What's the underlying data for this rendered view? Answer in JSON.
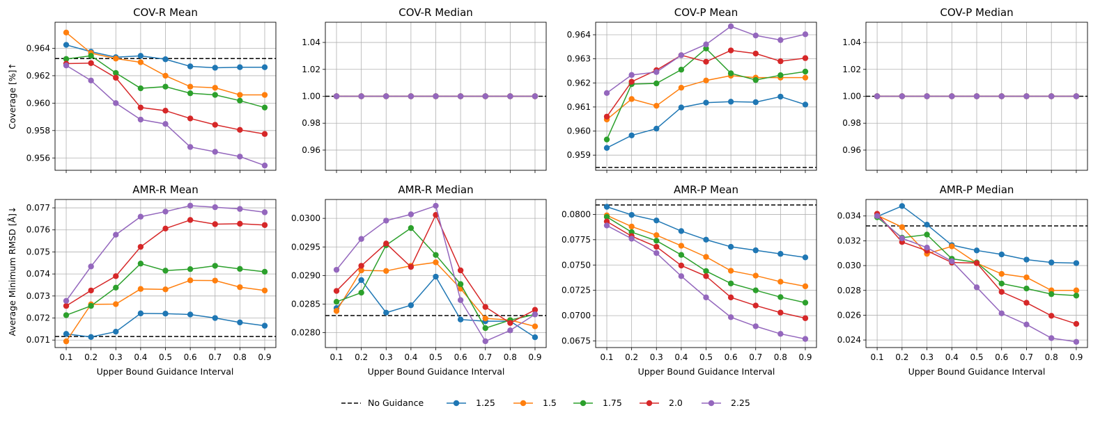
{
  "chart_data": {
    "type": "line",
    "x": [
      0.1,
      0.2,
      0.3,
      0.4,
      0.5,
      0.6,
      0.7,
      0.8,
      0.9
    ],
    "x_tick_labels": [
      "0.1",
      "0.2",
      "0.3",
      "0.4",
      "0.5",
      "0.6",
      "0.7",
      "0.8",
      "0.9"
    ],
    "xlabel": "Upper Bound Guidance Interval",
    "row_ylabels": [
      "Coverage [%]↑",
      "Average Minimum RMSD [Å]↓"
    ],
    "series_names": [
      "1.25",
      "1.5",
      "1.75",
      "2.0",
      "2.25"
    ],
    "colors": [
      "#1f77b4",
      "#ff7f0e",
      "#2ca02c",
      "#d62728",
      "#9467bd"
    ],
    "baseline_name": "No Guidance",
    "legend": {
      "position": "bottom-center",
      "entries": [
        "No Guidance",
        "1.25",
        "1.5",
        "1.75",
        "2.0",
        "2.25"
      ]
    },
    "grid": true,
    "panels": [
      {
        "title": "COV-R Mean",
        "ylim": [
          0.9551,
          0.9659
        ],
        "yticks": [
          0.956,
          0.958,
          0.96,
          0.962,
          0.964
        ],
        "ytick_labels": [
          "0.956",
          "0.958",
          "0.960",
          "0.962",
          "0.964"
        ],
        "baseline": 0.96325,
        "series": [
          {
            "name": "1.25",
            "values": [
              0.96425,
              0.96375,
              0.96335,
              0.96345,
              0.9632,
              0.96268,
              0.96258,
              0.96262,
              0.96262
            ]
          },
          {
            "name": "1.5",
            "values": [
              0.96515,
              0.96365,
              0.96325,
              0.96298,
              0.962,
              0.9612,
              0.96112,
              0.9606,
              0.9606
            ]
          },
          {
            "name": "1.75",
            "values": [
              0.96322,
              0.96345,
              0.9622,
              0.96108,
              0.9612,
              0.96072,
              0.9606,
              0.96018,
              0.95968
            ]
          },
          {
            "name": "2.0",
            "values": [
              0.96288,
              0.96292,
              0.96185,
              0.95968,
              0.95945,
              0.95888,
              0.95842,
              0.95805,
              0.95775
            ]
          },
          {
            "name": "2.25",
            "values": [
              0.96275,
              0.96165,
              0.96,
              0.9588,
              0.95848,
              0.9568,
              0.95645,
              0.9561,
              0.95545
            ]
          }
        ]
      },
      {
        "title": "COV-R Median",
        "ylim": [
          0.945,
          1.055
        ],
        "yticks": [
          0.96,
          0.98,
          1.0,
          1.02,
          1.04
        ],
        "ytick_labels": [
          "0.96",
          "0.98",
          "1.00",
          "1.02",
          "1.04"
        ],
        "baseline": 1.0,
        "series": [
          {
            "name": "1.25",
            "values": [
              1,
              1,
              1,
              1,
              1,
              1,
              1,
              1,
              1
            ]
          },
          {
            "name": "1.5",
            "values": [
              1,
              1,
              1,
              1,
              1,
              1,
              1,
              1,
              1
            ]
          },
          {
            "name": "1.75",
            "values": [
              1,
              1,
              1,
              1,
              1,
              1,
              1,
              1,
              1
            ]
          },
          {
            "name": "2.0",
            "values": [
              1,
              1,
              1,
              1,
              1,
              1,
              1,
              1,
              1
            ]
          },
          {
            "name": "2.25",
            "values": [
              1,
              1,
              1,
              1,
              1,
              1,
              1,
              1,
              1
            ]
          }
        ]
      },
      {
        "title": "COV-P Mean",
        "ylim": [
          0.95837,
          0.96452
        ],
        "yticks": [
          0.959,
          0.96,
          0.961,
          0.962,
          0.963,
          0.964
        ],
        "ytick_labels": [
          "0.959",
          "0.960",
          "0.961",
          "0.962",
          "0.963",
          "0.964"
        ],
        "baseline": 0.95849,
        "series": [
          {
            "name": "1.25",
            "values": [
              0.9593,
              0.95982,
              0.9601,
              0.96098,
              0.96118,
              0.96122,
              0.9612,
              0.96143,
              0.9611
            ]
          },
          {
            "name": "1.5",
            "values": [
              0.96048,
              0.96133,
              0.96105,
              0.9618,
              0.9621,
              0.9623,
              0.96222,
              0.96222,
              0.96222
            ]
          },
          {
            "name": "1.75",
            "values": [
              0.95965,
              0.96195,
              0.96198,
              0.96255,
              0.96343,
              0.9624,
              0.96212,
              0.96232,
              0.96247
            ]
          },
          {
            "name": "2.0",
            "values": [
              0.9606,
              0.96205,
              0.96253,
              0.96315,
              0.96288,
              0.96335,
              0.96322,
              0.9629,
              0.96303
            ]
          },
          {
            "name": "2.25",
            "values": [
              0.96158,
              0.96233,
              0.96245,
              0.96315,
              0.9636,
              0.96435,
              0.96397,
              0.96378,
              0.96402
            ]
          }
        ]
      },
      {
        "title": "COV-P Median",
        "ylim": [
          0.945,
          1.055
        ],
        "yticks": [
          0.96,
          0.98,
          1.0,
          1.02,
          1.04
        ],
        "ytick_labels": [
          "0.96",
          "0.98",
          "1.00",
          "1.02",
          "1.04"
        ],
        "baseline": 1.0,
        "series": [
          {
            "name": "1.25",
            "values": [
              1,
              1,
              1,
              1,
              1,
              1,
              1,
              1,
              1
            ]
          },
          {
            "name": "1.5",
            "values": [
              1,
              1,
              1,
              1,
              1,
              1,
              1,
              1,
              1
            ]
          },
          {
            "name": "1.75",
            "values": [
              1,
              1,
              1,
              1,
              1,
              1,
              1,
              1,
              1
            ]
          },
          {
            "name": "2.0",
            "values": [
              1,
              1,
              1,
              1,
              1,
              1,
              1,
              1,
              1
            ]
          },
          {
            "name": "2.25",
            "values": [
              1,
              1,
              1,
              1,
              1,
              1,
              1,
              1,
              1
            ]
          }
        ]
      },
      {
        "title": "AMR-R Mean",
        "ylim": [
          0.07066,
          0.07738
        ],
        "yticks": [
          0.071,
          0.072,
          0.073,
          0.074,
          0.075,
          0.076,
          0.077
        ],
        "ytick_labels": [
          "0.071",
          "0.072",
          "0.073",
          "0.074",
          "0.075",
          "0.076",
          "0.077"
        ],
        "baseline": 0.07116,
        "series": [
          {
            "name": "1.25",
            "values": [
              0.07128,
              0.07114,
              0.07138,
              0.07221,
              0.0722,
              0.07216,
              0.072,
              0.0718,
              0.07165
            ]
          },
          {
            "name": "1.5",
            "values": [
              0.07094,
              0.07262,
              0.07263,
              0.07332,
              0.0733,
              0.07371,
              0.0737,
              0.0734,
              0.07325
            ]
          },
          {
            "name": "1.75",
            "values": [
              0.07213,
              0.07255,
              0.07338,
              0.07447,
              0.07415,
              0.07422,
              0.07437,
              0.07423,
              0.0741
            ]
          },
          {
            "name": "2.0",
            "values": [
              0.07255,
              0.07325,
              0.0739,
              0.07523,
              0.07606,
              0.07645,
              0.07626,
              0.07628,
              0.07622
            ]
          },
          {
            "name": "2.25",
            "values": [
              0.07278,
              0.07434,
              0.07578,
              0.0766,
              0.07683,
              0.0771,
              0.07703,
              0.07695,
              0.0768
            ]
          }
        ]
      },
      {
        "title": "AMR-R Median",
        "ylim": [
          0.02774,
          0.03033
        ],
        "yticks": [
          0.028,
          0.0285,
          0.029,
          0.0295,
          0.03
        ],
        "ytick_labels": [
          "0.0280",
          "0.0285",
          "0.0290",
          "0.0295",
          "0.0300"
        ],
        "baseline": 0.0283,
        "series": [
          {
            "name": "1.25",
            "values": [
              0.02843,
              0.02892,
              0.02835,
              0.02848,
              0.02898,
              0.02823,
              0.0282,
              0.0282,
              0.02792
            ]
          },
          {
            "name": "1.5",
            "values": [
              0.02838,
              0.02909,
              0.02908,
              0.02917,
              0.02923,
              0.02877,
              0.02825,
              0.02822,
              0.02811
            ]
          },
          {
            "name": "1.75",
            "values": [
              0.02854,
              0.0287,
              0.02953,
              0.02983,
              0.02936,
              0.02885,
              0.02808,
              0.02822,
              0.02832
            ]
          },
          {
            "name": "2.0",
            "values": [
              0.02873,
              0.02917,
              0.02956,
              0.02915,
              0.03006,
              0.02909,
              0.02845,
              0.02817,
              0.0284
            ]
          },
          {
            "name": "2.25",
            "values": [
              0.0291,
              0.02964,
              0.02996,
              0.03007,
              0.03022,
              0.02857,
              0.02785,
              0.02804,
              0.02832
            ]
          }
        ]
      },
      {
        "title": "AMR-P Mean",
        "ylim": [
          0.06685,
          0.08147
        ],
        "yticks": [
          0.0675,
          0.07,
          0.0725,
          0.075,
          0.0775,
          0.08
        ],
        "ytick_labels": [
          "0.0675",
          "0.0700",
          "0.0725",
          "0.0750",
          "0.0775",
          "0.0800"
        ],
        "baseline": 0.08093,
        "series": [
          {
            "name": "1.25",
            "values": [
              0.08075,
              0.07995,
              0.0794,
              0.07835,
              0.0775,
              0.0768,
              0.07645,
              0.0761,
              0.07575
            ]
          },
          {
            "name": "1.5",
            "values": [
              0.0799,
              0.0788,
              0.07795,
              0.0769,
              0.0758,
              0.07443,
              0.07395,
              0.07335,
              0.0729
            ]
          },
          {
            "name": "1.75",
            "values": [
              0.07975,
              0.07825,
              0.0774,
              0.076,
              0.0744,
              0.07318,
              0.0725,
              0.07183,
              0.07128
            ]
          },
          {
            "name": "2.0",
            "values": [
              0.0793,
              0.07785,
              0.0768,
              0.07495,
              0.0739,
              0.0718,
              0.071,
              0.0703,
              0.06975
            ]
          },
          {
            "name": "2.25",
            "values": [
              0.0789,
              0.0776,
              0.07618,
              0.0739,
              0.0718,
              0.06985,
              0.06895,
              0.0682,
              0.0677
            ]
          }
        ]
      },
      {
        "title": "AMR-P Median",
        "ylim": [
          0.02339,
          0.03533
        ],
        "yticks": [
          0.024,
          0.026,
          0.028,
          0.03,
          0.032,
          0.034
        ],
        "ytick_labels": [
          "0.024",
          "0.026",
          "0.028",
          "0.030",
          "0.032",
          "0.034"
        ],
        "baseline": 0.0332,
        "series": [
          {
            "name": "1.25",
            "values": [
              0.03395,
              0.0348,
              0.0333,
              0.03165,
              0.03122,
              0.0309,
              0.03048,
              0.03025,
              0.0302
            ]
          },
          {
            "name": "1.5",
            "values": [
              0.03405,
              0.0331,
              0.03095,
              0.03155,
              0.0302,
              0.02933,
              0.02905,
              0.028,
              0.028
            ]
          },
          {
            "name": "1.75",
            "values": [
              0.0339,
              0.03225,
              0.0325,
              0.03055,
              0.03025,
              0.02855,
              0.02815,
              0.0277,
              0.02758
            ]
          },
          {
            "name": "2.0",
            "values": [
              0.03418,
              0.0319,
              0.0312,
              0.03025,
              0.0302,
              0.02788,
              0.027,
              0.02595,
              0.0253
            ]
          },
          {
            "name": "2.25",
            "values": [
              0.034,
              0.0322,
              0.03145,
              0.03035,
              0.02825,
              0.02615,
              0.02525,
              0.02415,
              0.02385
            ]
          }
        ]
      }
    ]
  }
}
